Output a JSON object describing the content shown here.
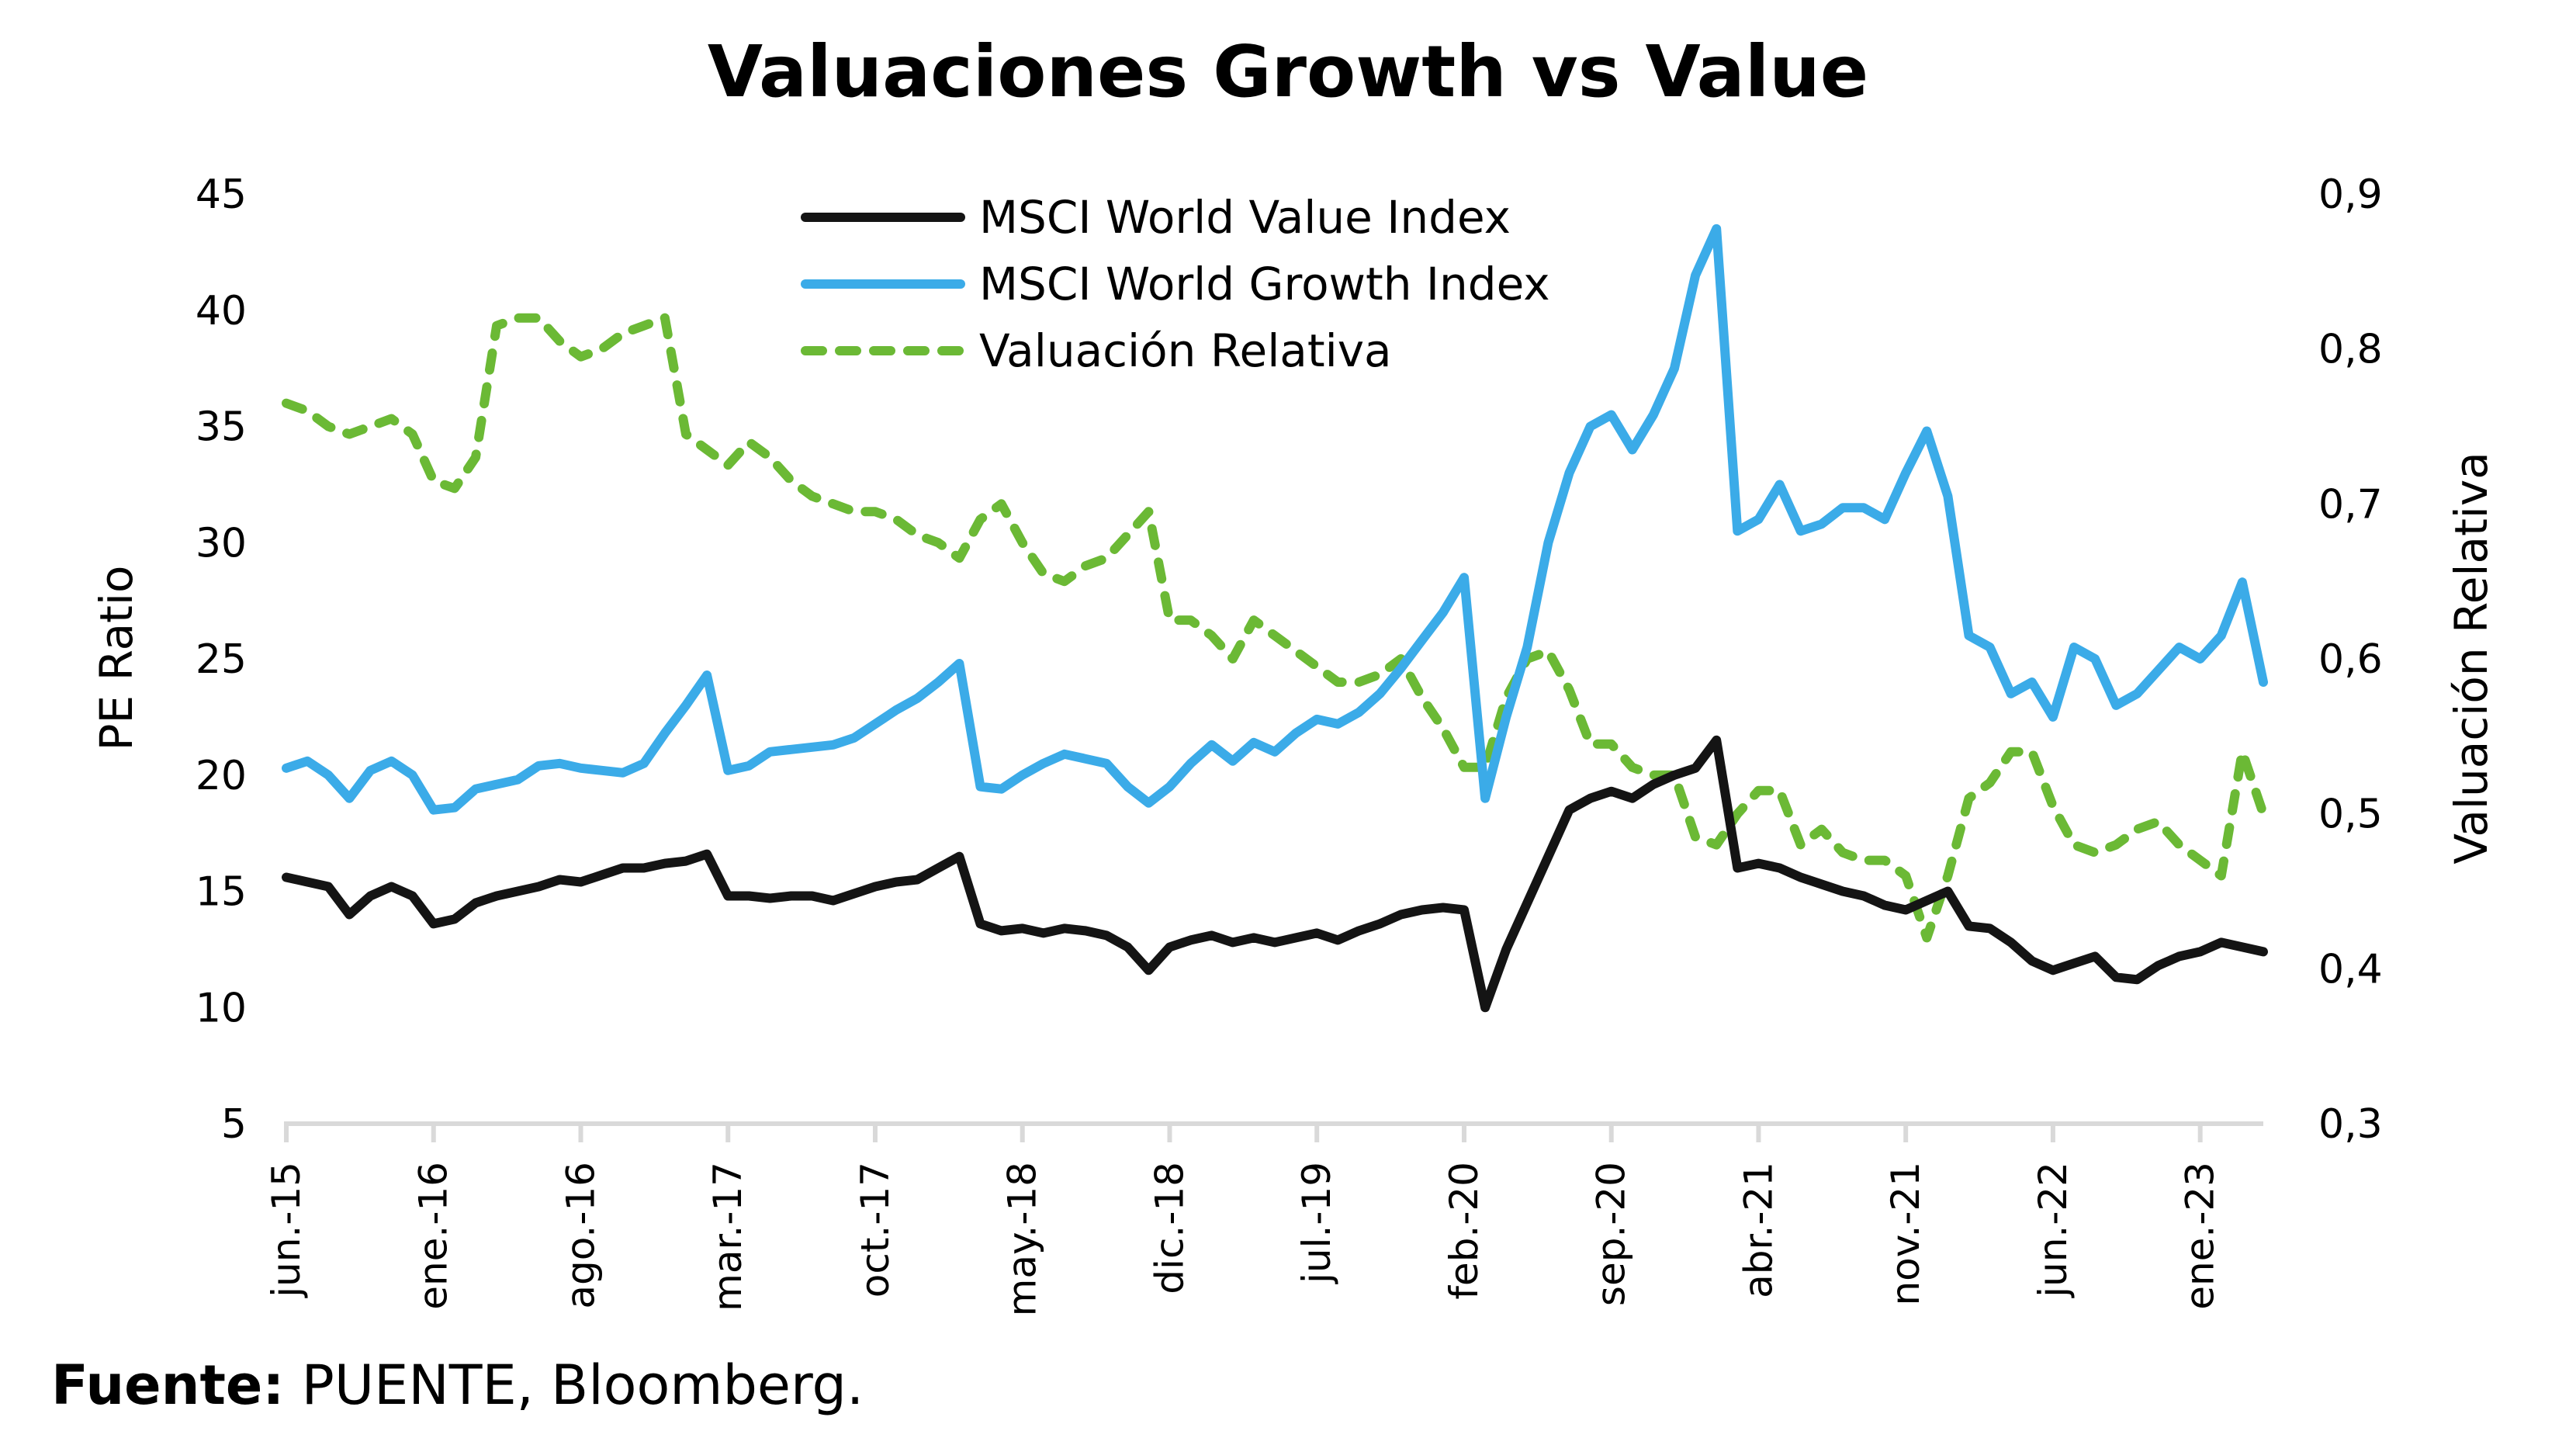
{
  "chart_data": {
    "type": "line",
    "title": "Valuaciones Growth vs Value",
    "ylabel": "PE Ratio",
    "y2label": "Valuación Relativa",
    "xlabel": "",
    "ylim": [
      5,
      45
    ],
    "y2lim": [
      0.3,
      0.9
    ],
    "yticks": [
      "5",
      "10",
      "15",
      "20",
      "25",
      "30",
      "35",
      "40",
      "45"
    ],
    "yticks_values": [
      5,
      10,
      15,
      20,
      25,
      30,
      35,
      40,
      45
    ],
    "y2ticks": [
      "0,3",
      "0,4",
      "0,5",
      "0,6",
      "0,7",
      "0,8",
      "0,9"
    ],
    "y2ticks_values": [
      0.3,
      0.4,
      0.5,
      0.6,
      0.7,
      0.8,
      0.9
    ],
    "xticks": [
      "jun.-15",
      "ene.-16",
      "ago.-16",
      "mar.-17",
      "oct.-17",
      "may.-18",
      "dic.-18",
      "jul.-19",
      "feb.-20",
      "sep.-20",
      "abr.-21",
      "nov.-21",
      "jun.-22",
      "ene.-23"
    ],
    "xticks_month_index": [
      0,
      7,
      14,
      21,
      28,
      35,
      42,
      49,
      56,
      63,
      70,
      77,
      84,
      91
    ],
    "x_start": "jun.-15",
    "x_months_span": 94,
    "grid": false,
    "legend_position": "top-center",
    "series": [
      {
        "name": "MSCI World Value Index",
        "axis": "left",
        "color": "#141414",
        "style": "solid",
        "values": [
          15.6,
          15.4,
          15.2,
          14.0,
          14.8,
          15.2,
          14.8,
          13.6,
          13.8,
          14.5,
          14.8,
          15.0,
          15.2,
          15.5,
          15.4,
          15.7,
          16.0,
          16.0,
          16.2,
          16.3,
          16.6,
          14.8,
          14.8,
          14.7,
          14.8,
          14.8,
          14.6,
          14.9,
          15.2,
          15.4,
          15.5,
          16.0,
          16.5,
          13.6,
          13.3,
          13.4,
          13.2,
          13.4,
          13.3,
          13.1,
          12.6,
          11.6,
          12.6,
          12.9,
          13.1,
          12.8,
          13.0,
          12.8,
          13.0,
          13.2,
          12.9,
          13.3,
          13.6,
          14.0,
          14.2,
          14.3,
          14.2,
          10.0,
          12.5,
          14.5,
          16.5,
          18.5,
          19.0,
          19.3,
          19.0,
          19.6,
          20.0,
          20.3,
          21.5,
          16.0,
          16.2,
          16.0,
          15.6,
          15.3,
          15.0,
          14.8,
          14.4,
          14.2,
          14.6,
          15.0,
          13.5,
          13.4,
          12.8,
          12.0,
          11.6,
          11.9,
          12.2,
          11.3,
          11.2,
          11.8,
          12.2,
          12.4,
          12.8,
          12.6,
          12.4
        ]
      },
      {
        "name": "MSCI World Growth Index",
        "axis": "left",
        "color": "#3BABE8",
        "style": "solid",
        "values": [
          20.3,
          20.6,
          20.0,
          19.0,
          20.2,
          20.6,
          20.0,
          18.5,
          18.6,
          19.4,
          19.6,
          19.8,
          20.4,
          20.5,
          20.3,
          20.2,
          20.1,
          20.5,
          21.8,
          23.0,
          24.3,
          20.2,
          20.4,
          21.0,
          21.1,
          21.2,
          21.3,
          21.6,
          22.2,
          22.8,
          23.3,
          24.0,
          24.8,
          19.5,
          19.4,
          20.0,
          20.5,
          20.9,
          20.7,
          20.5,
          19.5,
          18.8,
          19.5,
          20.5,
          21.3,
          20.6,
          21.4,
          21.0,
          21.8,
          22.4,
          22.2,
          22.7,
          23.5,
          24.6,
          25.8,
          27.0,
          28.5,
          19.0,
          22.5,
          25.5,
          30.0,
          33.0,
          35.0,
          35.5,
          34.0,
          35.5,
          37.5,
          41.5,
          43.5,
          30.5,
          31.0,
          32.5,
          30.5,
          30.8,
          31.5,
          31.5,
          31.0,
          33.0,
          34.8,
          32.0,
          26.0,
          25.5,
          23.5,
          24.0,
          22.5,
          25.5,
          25.0,
          23.0,
          23.5,
          24.5,
          25.5,
          25.0,
          26.0,
          28.3,
          24.0
        ]
      },
      {
        "name": "Valuación Relativa",
        "axis": "right",
        "color": "#6BB935",
        "style": "dashed",
        "values": [
          0.765,
          0.76,
          0.75,
          0.745,
          0.75,
          0.755,
          0.745,
          0.715,
          0.71,
          0.73,
          0.815,
          0.82,
          0.82,
          0.805,
          0.795,
          0.8,
          0.81,
          0.815,
          0.82,
          0.745,
          0.735,
          0.725,
          0.74,
          0.73,
          0.715,
          0.705,
          0.7,
          0.695,
          0.695,
          0.69,
          0.68,
          0.675,
          0.665,
          0.69,
          0.7,
          0.675,
          0.655,
          0.65,
          0.66,
          0.665,
          0.68,
          0.695,
          0.625,
          0.625,
          0.615,
          0.6,
          0.625,
          0.615,
          0.605,
          0.595,
          0.585,
          0.585,
          0.59,
          0.6,
          0.575,
          0.555,
          0.53,
          0.53,
          0.575,
          0.6,
          0.605,
          0.58,
          0.545,
          0.545,
          0.53,
          0.525,
          0.525,
          0.485,
          0.48,
          0.5,
          0.515,
          0.515,
          0.48,
          0.49,
          0.475,
          0.47,
          0.47,
          0.46,
          0.42,
          0.46,
          0.51,
          0.52,
          0.54,
          0.54,
          0.505,
          0.48,
          0.475,
          0.48,
          0.49,
          0.495,
          0.48,
          0.47,
          0.46,
          0.54,
          0.5
        ]
      }
    ]
  },
  "source": {
    "label": "Fuente:",
    "text": " PUENTE, Bloomberg."
  }
}
